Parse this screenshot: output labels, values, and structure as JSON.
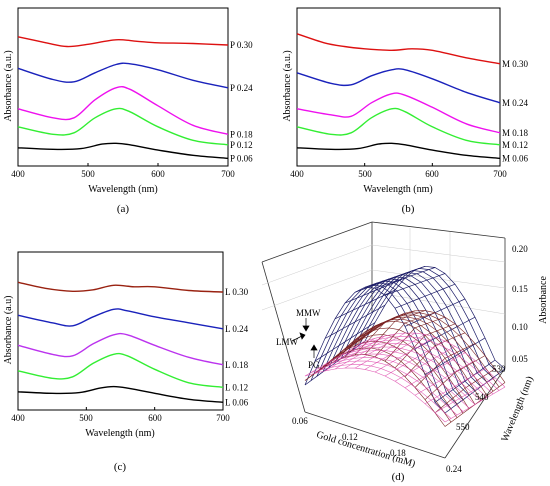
{
  "chart_data": [
    {
      "type": "line",
      "panel_label": "(a)",
      "xlabel": "Wavelength (nm)",
      "ylabel": "Absorbance (a.u.)",
      "xlim": [
        400,
        700
      ],
      "xticks": [
        "400",
        "500",
        "600",
        "700"
      ],
      "series": [
        {
          "name": "P 0.06",
          "color": "#000000",
          "x": [
            400,
            450,
            490,
            520,
            540,
            560,
            600,
            650,
            700
          ],
          "values": [
            0.1,
            0.09,
            0.095,
            0.125,
            0.13,
            0.12,
            0.085,
            0.05,
            0.03
          ]
        },
        {
          "name": "P 0.12",
          "color": "#33ee33",
          "x": [
            400,
            450,
            480,
            510,
            540,
            560,
            600,
            650,
            700
          ],
          "values": [
            0.24,
            0.19,
            0.2,
            0.3,
            0.36,
            0.34,
            0.24,
            0.15,
            0.12
          ]
        },
        {
          "name": "P 0.18",
          "color": "#ee11ee",
          "x": [
            400,
            450,
            480,
            510,
            540,
            560,
            600,
            650,
            700
          ],
          "values": [
            0.36,
            0.3,
            0.3,
            0.42,
            0.5,
            0.49,
            0.38,
            0.25,
            0.19
          ]
        },
        {
          "name": "P 0.24",
          "color": "#1a22bb",
          "x": [
            400,
            450,
            480,
            510,
            540,
            560,
            600,
            650,
            700
          ],
          "values": [
            0.63,
            0.555,
            0.54,
            0.6,
            0.655,
            0.66,
            0.62,
            0.55,
            0.5
          ]
        },
        {
          "name": "P 0.30",
          "color": "#dd1111",
          "x": [
            400,
            440,
            470,
            500,
            540,
            570,
            600,
            650,
            700
          ],
          "values": [
            0.84,
            0.8,
            0.775,
            0.79,
            0.82,
            0.81,
            0.8,
            0.795,
            0.785
          ]
        }
      ]
    },
    {
      "type": "line",
      "panel_label": "(b)",
      "xlabel": "Wavelength (nm)",
      "ylabel": "Absorbance (a.u.)",
      "xlim": [
        400,
        700
      ],
      "xticks": [
        "400",
        "500",
        "600",
        "700"
      ],
      "series": [
        {
          "name": "M 0.06",
          "color": "#000000",
          "x": [
            400,
            450,
            490,
            520,
            540,
            560,
            600,
            650,
            700
          ],
          "values": [
            0.1,
            0.09,
            0.095,
            0.125,
            0.13,
            0.12,
            0.085,
            0.05,
            0.03
          ]
        },
        {
          "name": "M 0.12",
          "color": "#33ee33",
          "x": [
            400,
            450,
            480,
            510,
            540,
            560,
            600,
            650,
            700
          ],
          "values": [
            0.24,
            0.19,
            0.2,
            0.3,
            0.36,
            0.34,
            0.24,
            0.15,
            0.12
          ]
        },
        {
          "name": "M 0.18",
          "color": "#ee11ee",
          "x": [
            400,
            450,
            480,
            510,
            540,
            560,
            600,
            650,
            700
          ],
          "values": [
            0.36,
            0.32,
            0.31,
            0.4,
            0.46,
            0.45,
            0.37,
            0.26,
            0.2
          ]
        },
        {
          "name": "M 0.24",
          "color": "#1a22bb",
          "x": [
            400,
            450,
            480,
            510,
            540,
            560,
            600,
            650,
            700
          ],
          "values": [
            0.6,
            0.53,
            0.52,
            0.58,
            0.62,
            0.62,
            0.56,
            0.47,
            0.4
          ]
        },
        {
          "name": "M 0.30",
          "color": "#dd1111",
          "x": [
            400,
            440,
            470,
            500,
            540,
            570,
            600,
            650,
            700
          ],
          "values": [
            0.86,
            0.8,
            0.775,
            0.76,
            0.75,
            0.76,
            0.75,
            0.7,
            0.66
          ]
        }
      ]
    },
    {
      "type": "line",
      "panel_label": "(c)",
      "xlabel": "Wavelength (nm)",
      "ylabel": "Absorbance (a.u)",
      "xlim": [
        400,
        700
      ],
      "xticks": [
        "400",
        "500",
        "600",
        "700"
      ],
      "series": [
        {
          "name": "L 0.06",
          "color": "#000000",
          "x": [
            400,
            450,
            490,
            520,
            540,
            560,
            600,
            650,
            700
          ],
          "values": [
            0.1,
            0.09,
            0.095,
            0.125,
            0.135,
            0.125,
            0.09,
            0.05,
            0.03
          ]
        },
        {
          "name": "L 0.12",
          "color": "#33ee33",
          "x": [
            400,
            450,
            480,
            510,
            540,
            560,
            600,
            650,
            700
          ],
          "values": [
            0.24,
            0.19,
            0.2,
            0.29,
            0.35,
            0.34,
            0.25,
            0.16,
            0.13
          ]
        },
        {
          "name": "L 0.18",
          "color": "#bb33ee",
          "x": [
            400,
            450,
            480,
            510,
            540,
            560,
            600,
            650,
            700
          ],
          "values": [
            0.41,
            0.35,
            0.34,
            0.42,
            0.48,
            0.48,
            0.41,
            0.33,
            0.28
          ]
        },
        {
          "name": "L 0.24",
          "color": "#1a22bb",
          "x": [
            400,
            450,
            480,
            510,
            540,
            560,
            600,
            650,
            700
          ],
          "values": [
            0.61,
            0.56,
            0.54,
            0.6,
            0.65,
            0.64,
            0.6,
            0.56,
            0.52
          ]
        },
        {
          "name": "L 0.30",
          "color": "#992211",
          "x": [
            400,
            440,
            480,
            510,
            540,
            570,
            600,
            650,
            700
          ],
          "values": [
            0.83,
            0.79,
            0.77,
            0.78,
            0.81,
            0.8,
            0.8,
            0.775,
            0.765
          ]
        }
      ]
    },
    {
      "type": "surface3d",
      "panel_label": "(d)",
      "xlabel": "Gold concentration (mM)",
      "ylabel": "Wavelength (nm)",
      "zlabel": "Absorbance",
      "xticks": [
        "0.06",
        "0.12",
        "0.18",
        "0.24"
      ],
      "yticks": [
        "530",
        "540",
        "550"
      ],
      "zticks": [
        "0.05",
        "0.10",
        "0.15",
        "0.20"
      ],
      "surfaces": [
        {
          "name": "MMW",
          "color": "#1a1a66"
        },
        {
          "name": "LMW",
          "color": "#7a2222"
        },
        {
          "name": "PG",
          "color": "#dd44aa"
        }
      ]
    }
  ]
}
